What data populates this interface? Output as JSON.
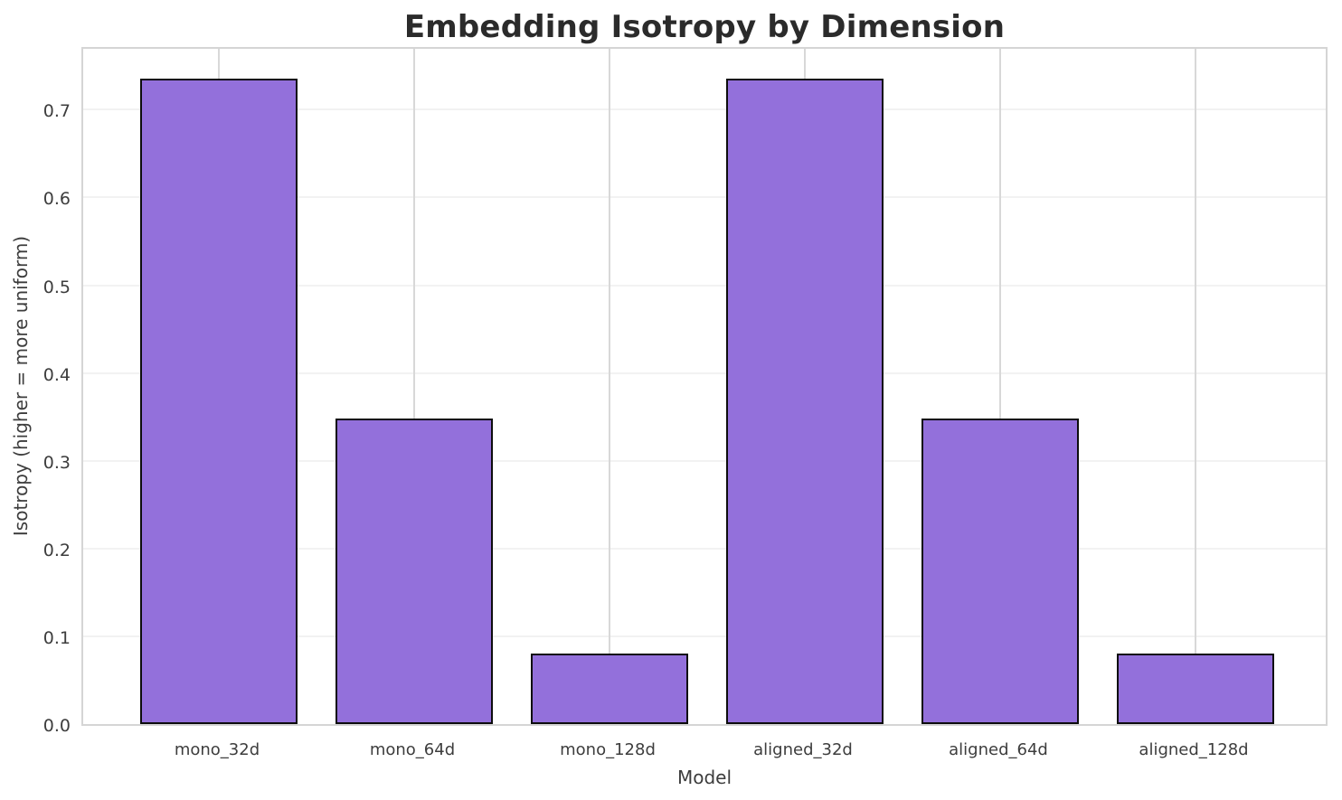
{
  "title": "Embedding Isotropy by Dimension",
  "chart_data": {
    "type": "bar",
    "title": "Embedding Isotropy by Dimension",
    "xlabel": "Model",
    "ylabel": "Isotropy (higher = more uniform)",
    "categories": [
      "mono_32d",
      "mono_64d",
      "mono_128d",
      "aligned_32d",
      "aligned_64d",
      "aligned_128d"
    ],
    "values": [
      0.735,
      0.348,
      0.08,
      0.735,
      0.348,
      0.08
    ],
    "ylim": [
      0.0,
      0.773
    ],
    "yticks": [
      0.0,
      0.1,
      0.2,
      0.3,
      0.4,
      0.5,
      0.6,
      0.7
    ],
    "ytick_labels": [
      "0.0",
      "0.1",
      "0.2",
      "0.3",
      "0.4",
      "0.5",
      "0.6",
      "0.7"
    ],
    "legend": "none",
    "grid": true,
    "bar_color": "#9370DB",
    "bar_edge_color": "#0d0d0d",
    "grid_color_horizontal": "#f2f2f2",
    "grid_color_vertical": "#d8d8d8",
    "spine_color": "#d5d5d5",
    "title_color": "#2b2b2b",
    "label_color": "#3d3d3d",
    "background_color": "#ffffff"
  }
}
